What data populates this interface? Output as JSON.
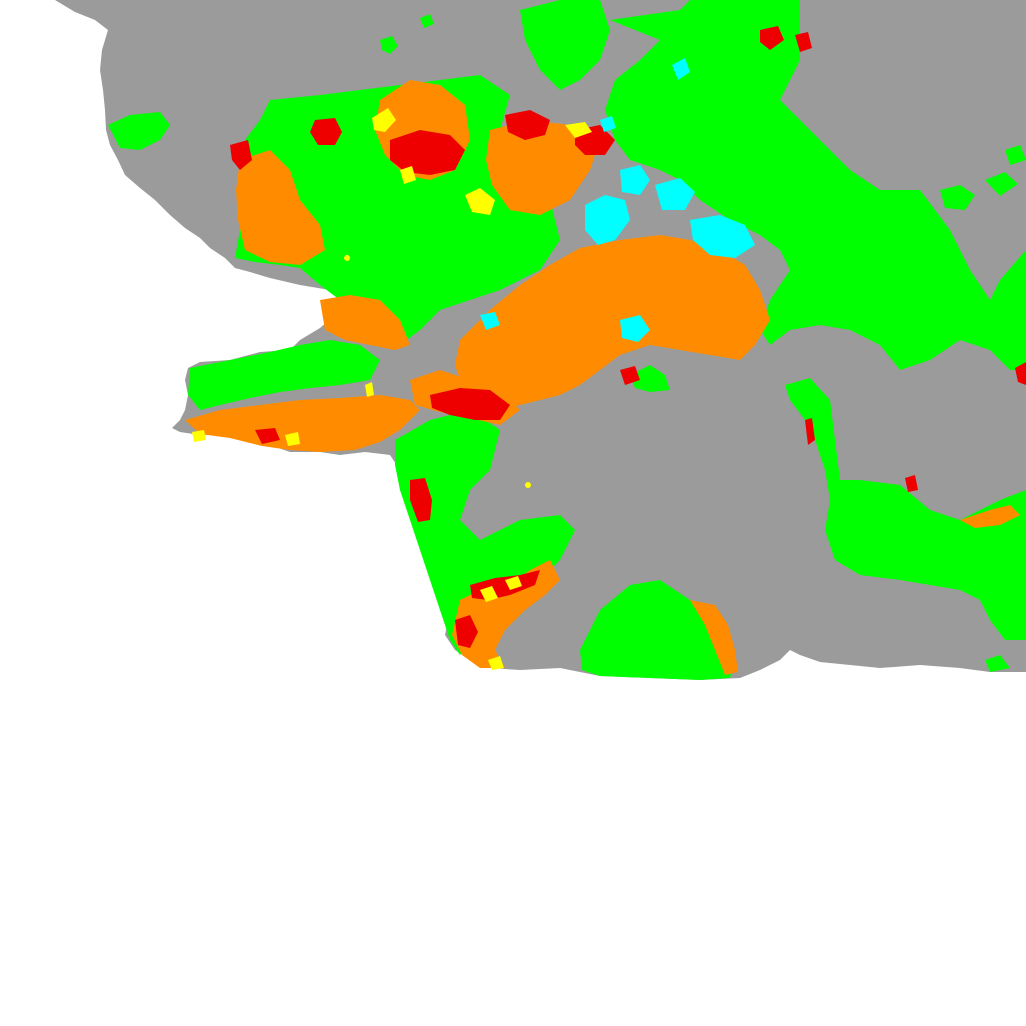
{
  "map": {
    "palette": {
      "background": "#ffffff",
      "land_unclassified": "#9b9b9b",
      "class_green": "#00ff00",
      "class_orange": "#ff8c00",
      "class_red": "#ee0000",
      "class_yellow": "#ffff00",
      "class_cyan": "#00ffff"
    },
    "classes": [
      {
        "color_key": "class_green",
        "icon": "green-region"
      },
      {
        "color_key": "class_orange",
        "icon": "orange-region"
      },
      {
        "color_key": "class_red",
        "icon": "red-region"
      },
      {
        "color_key": "class_yellow",
        "icon": "yellow-region"
      },
      {
        "color_key": "class_cyan",
        "icon": "cyan-region"
      }
    ]
  }
}
